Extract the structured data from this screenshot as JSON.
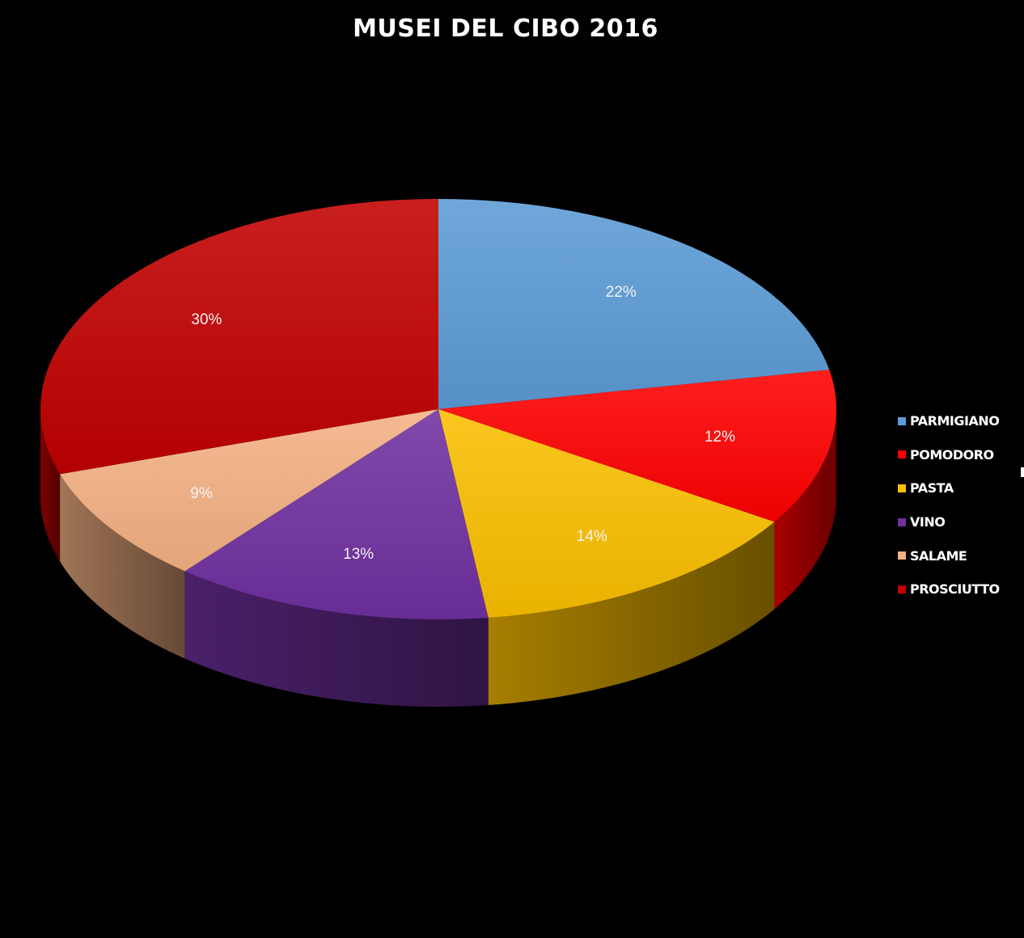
{
  "chart_data": {
    "type": "pie",
    "title": "MUSEI DEL CIBO 2016",
    "categories": [
      "PARMIGIANO",
      "POMODORO",
      "PASTA",
      "VINO",
      "SALAME",
      "PROSCIUTTO"
    ],
    "values": [
      22,
      12,
      14,
      13,
      9,
      30
    ],
    "value_labels": [
      "22%",
      "12%",
      "14%",
      "13%",
      "9%",
      "30%"
    ],
    "colors": [
      "#5b9bd5",
      "#ff0000",
      "#fbbf00",
      "#7030a0",
      "#f4b183",
      "#c00000"
    ],
    "three_d": true,
    "legend_position": "right"
  }
}
